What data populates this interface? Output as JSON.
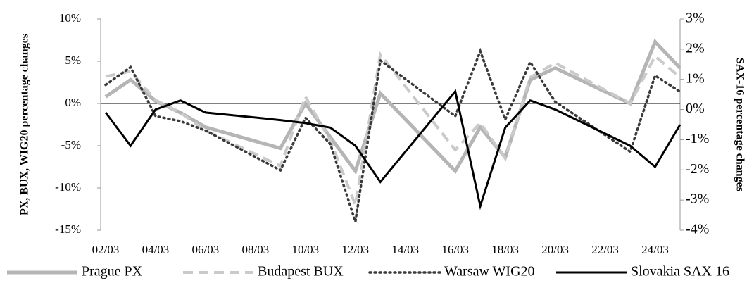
{
  "chart_data": {
    "type": "line",
    "x": [
      2,
      3,
      4,
      5,
      6,
      9,
      10,
      11,
      12,
      13,
      16,
      17,
      18,
      19,
      20,
      23,
      24,
      25
    ],
    "xlim": [
      2,
      25
    ],
    "xticks": [
      {
        "value": 2,
        "label": "02/03"
      },
      {
        "value": 4,
        "label": "04/03"
      },
      {
        "value": 6,
        "label": "06/03"
      },
      {
        "value": 8,
        "label": "08/03"
      },
      {
        "value": 10,
        "label": "10/03"
      },
      {
        "value": 12,
        "label": "12/03"
      },
      {
        "value": 14,
        "label": "14/03"
      },
      {
        "value": 16,
        "label": "16/03"
      },
      {
        "value": 18,
        "label": "18/03"
      },
      {
        "value": 20,
        "label": "20/03"
      },
      {
        "value": 22,
        "label": "22/03"
      },
      {
        "value": 24,
        "label": "24/03"
      }
    ],
    "ylabel": "PX, BUX, WIG20 percentage changes",
    "y2label": "SAX-16 percentage changes",
    "ylim": [
      -15,
      10
    ],
    "yticks": [
      {
        "value": -15,
        "label": "-15%"
      },
      {
        "value": -10,
        "label": "-10%"
      },
      {
        "value": -5,
        "label": "-5%"
      },
      {
        "value": 0,
        "label": "0%"
      },
      {
        "value": 5,
        "label": "5%"
      },
      {
        "value": 10,
        "label": "10%"
      }
    ],
    "y2lim": [
      -4,
      3
    ],
    "y2ticks": [
      {
        "value": -4,
        "label": "-4%"
      },
      {
        "value": -3,
        "label": "-3%"
      },
      {
        "value": -2,
        "label": "-2%"
      },
      {
        "value": -1,
        "label": "-1%"
      },
      {
        "value": 0,
        "label": "0%"
      },
      {
        "value": 1,
        "label": "1%"
      },
      {
        "value": 2,
        "label": "2%"
      },
      {
        "value": 3,
        "label": "3%"
      }
    ],
    "legend": "bottom",
    "series": [
      {
        "name": "Prague PX",
        "color": "#b5b5b5",
        "style": "solid",
        "width": 5,
        "values": [
          0.8,
          2.8,
          0.3,
          -1.1,
          -2.8,
          -5.3,
          0,
          -4,
          -8,
          1.2,
          -8,
          -2.8,
          -6.4,
          2.8,
          4.2,
          0,
          7.3,
          4.2
        ]
      },
      {
        "name": "Budapest BUX",
        "color": "#cacaca",
        "style": "dashed",
        "width": 4,
        "values": [
          3.2,
          3.8,
          0.4,
          -1.1,
          -3.2,
          -7.4,
          0.8,
          -4.4,
          -12,
          5.8,
          -5.5,
          -2.3,
          -6.5,
          3.1,
          4.8,
          0,
          5.6,
          3.1
        ]
      },
      {
        "name": "Warsaw WIG20",
        "color": "#3a3a3a",
        "style": "dotted",
        "width": 3.5,
        "values": [
          2.2,
          4.3,
          -1.5,
          -2.1,
          -3.2,
          -7.9,
          -1.7,
          -4.8,
          -14,
          5.1,
          -1.5,
          6.2,
          -1.9,
          4.9,
          0.2,
          -5.7,
          3.3,
          1.4
        ]
      },
      {
        "name": "Slovakia SAX 16",
        "color": "#000000",
        "style": "solid",
        "width": 3,
        "axis": "y2",
        "values": [
          -0.1,
          -1.2,
          0,
          0.3,
          -0.1,
          -0.35,
          -0.45,
          -0.6,
          -1.2,
          -2.4,
          0.6,
          -3.2,
          -0.6,
          0.3,
          0,
          -1.2,
          -1.9,
          -0.5
        ]
      }
    ]
  }
}
